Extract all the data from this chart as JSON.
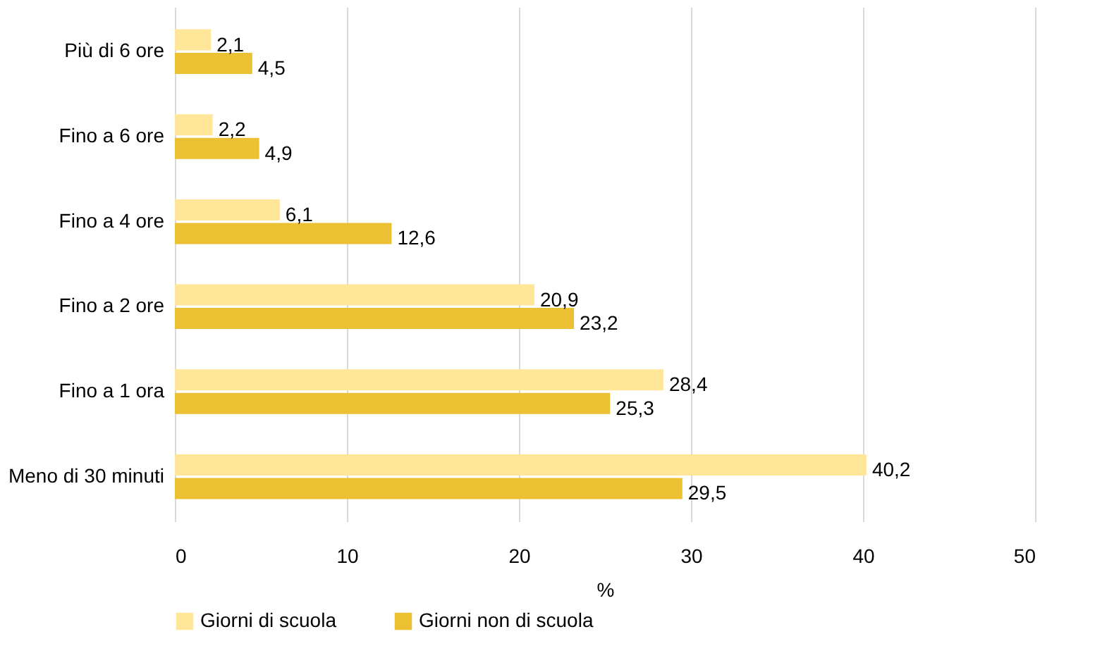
{
  "chart_data": {
    "type": "bar",
    "orientation": "horizontal",
    "xlabel": "%",
    "categories": [
      "Più di 6 ore",
      "Fino a 6 ore",
      "Fino a 4 ore",
      "Fino a 2 ore",
      "Fino a 1 ora",
      "Meno di 30 minuti"
    ],
    "series": [
      {
        "name": "Giorni di scuola",
        "color": "#ffe699",
        "values": [
          2.1,
          2.2,
          6.1,
          20.9,
          28.4,
          40.2
        ],
        "value_labels": [
          "2,1",
          "2,2",
          "6,1",
          "20,9",
          "28,4",
          "40,2"
        ]
      },
      {
        "name": "Giorni non di scuola",
        "color": "#ebc033",
        "values": [
          4.5,
          4.9,
          12.6,
          23.2,
          25.3,
          29.5
        ],
        "value_labels": [
          "4,5",
          "4,9",
          "12,6",
          "23,2",
          "25,3",
          "29,5"
        ]
      }
    ],
    "xlim": [
      0,
      50
    ],
    "xticks": [
      0,
      10,
      20,
      30,
      40,
      50
    ],
    "grid": "x",
    "legend": "bottom"
  }
}
